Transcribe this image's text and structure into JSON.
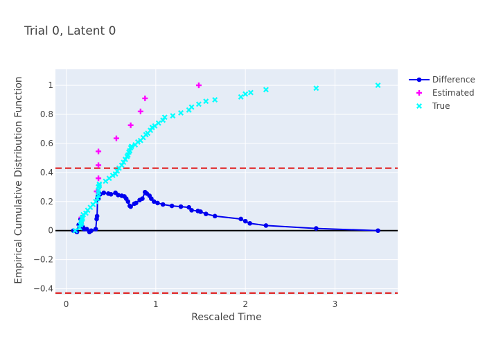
{
  "chart_data": {
    "type": "scatter",
    "title": "Trial 0, Latent 0",
    "xlabel": "Rescaled Time",
    "ylabel": "Empirical Cumulative Distribution Function",
    "xlim": [
      -0.12,
      3.7
    ],
    "ylim": [
      -0.44,
      1.11
    ],
    "xticks": [
      0,
      1,
      2,
      3
    ],
    "yticks": [
      -0.4,
      -0.2,
      0,
      0.2,
      0.4,
      0.6,
      0.8,
      1
    ],
    "ytick_labels": [
      "−0.4",
      "−0.2",
      "0",
      "0.2",
      "0.4",
      "0.6",
      "0.8",
      "1"
    ],
    "grid": true,
    "legend_position": "top-right",
    "reference_lines": [
      {
        "y": 0.43,
        "style": "dashed",
        "color": "#e01010"
      },
      {
        "y": -0.43,
        "style": "dashed",
        "color": "#e01010"
      },
      {
        "y": 0,
        "style": "solid",
        "color": "#000000"
      }
    ],
    "series": [
      {
        "name": "Difference",
        "mode": "lines+markers",
        "color": "#0000ee",
        "x": [
          0.08,
          0.12,
          0.14,
          0.16,
          0.17,
          0.18,
          0.19,
          0.2,
          0.23,
          0.26,
          0.28,
          0.33,
          0.34,
          0.345,
          0.35,
          0.355,
          0.36,
          0.38,
          0.42,
          0.47,
          0.5,
          0.55,
          0.58,
          0.62,
          0.65,
          0.67,
          0.69,
          0.71,
          0.72,
          0.76,
          0.78,
          0.82,
          0.85,
          0.88,
          0.9,
          0.93,
          0.95,
          0.98,
          1.02,
          1.08,
          1.18,
          1.28,
          1.37,
          1.4,
          1.47,
          1.5,
          1.56,
          1.66,
          1.95,
          2.0,
          2.05,
          2.23,
          2.79,
          3.48
        ],
        "y": [
          0.0,
          -0.01,
          0.04,
          0.08,
          0.05,
          0.03,
          0.02,
          0.01,
          0.01,
          -0.01,
          0.0,
          0.01,
          0.08,
          0.1,
          0.22,
          0.24,
          0.22,
          0.25,
          0.26,
          0.255,
          0.25,
          0.26,
          0.245,
          0.24,
          0.235,
          0.22,
          0.2,
          0.17,
          0.165,
          0.185,
          0.19,
          0.21,
          0.22,
          0.265,
          0.255,
          0.24,
          0.22,
          0.2,
          0.19,
          0.18,
          0.17,
          0.165,
          0.16,
          0.14,
          0.135,
          0.13,
          0.115,
          0.1,
          0.08,
          0.065,
          0.05,
          0.035,
          0.015,
          0.0
        ]
      },
      {
        "name": "Estimated",
        "mode": "markers",
        "marker": "cross",
        "color": "#ff00ff",
        "x": [
          0.17,
          0.34,
          0.36,
          0.36,
          0.36,
          0.56,
          0.72,
          0.83,
          0.88,
          1.48
        ],
        "y": [
          0.09,
          0.27,
          0.36,
          0.45,
          0.545,
          0.635,
          0.725,
          0.82,
          0.91,
          1.0
        ]
      },
      {
        "name": "True",
        "mode": "markers",
        "marker": "x",
        "color": "#00ffff",
        "x": [
          0.1,
          0.15,
          0.16,
          0.17,
          0.17,
          0.18,
          0.18,
          0.19,
          0.22,
          0.24,
          0.27,
          0.3,
          0.33,
          0.35,
          0.36,
          0.36,
          0.36,
          0.36,
          0.37,
          0.37,
          0.44,
          0.48,
          0.52,
          0.55,
          0.57,
          0.59,
          0.62,
          0.64,
          0.66,
          0.68,
          0.69,
          0.7,
          0.71,
          0.72,
          0.73,
          0.77,
          0.8,
          0.83,
          0.86,
          0.89,
          0.91,
          0.94,
          0.96,
          0.99,
          1.03,
          1.08,
          1.1,
          1.19,
          1.28,
          1.37,
          1.4,
          1.48,
          1.56,
          1.66,
          1.95,
          2.0,
          2.06,
          2.23,
          2.79,
          3.48
        ],
        "y": [
          0.0,
          0.02,
          0.04,
          0.05,
          0.06,
          0.08,
          0.09,
          0.11,
          0.12,
          0.14,
          0.16,
          0.18,
          0.2,
          0.22,
          0.24,
          0.26,
          0.28,
          0.3,
          0.31,
          0.32,
          0.34,
          0.36,
          0.38,
          0.39,
          0.41,
          0.43,
          0.45,
          0.47,
          0.49,
          0.51,
          0.52,
          0.54,
          0.55,
          0.57,
          0.58,
          0.59,
          0.61,
          0.62,
          0.64,
          0.66,
          0.67,
          0.69,
          0.71,
          0.72,
          0.74,
          0.76,
          0.78,
          0.79,
          0.81,
          0.83,
          0.85,
          0.87,
          0.89,
          0.9,
          0.92,
          0.94,
          0.95,
          0.97,
          0.98,
          1.0
        ]
      }
    ]
  }
}
